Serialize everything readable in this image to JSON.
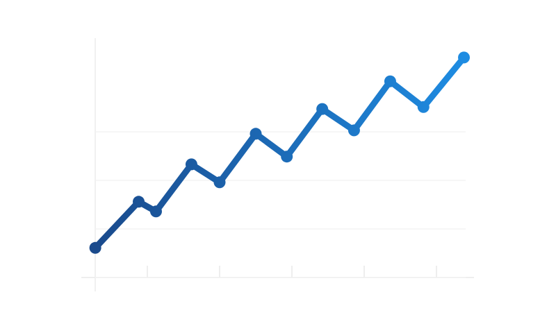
{
  "chart_data": {
    "type": "line",
    "x": [
      0.28,
      0.88,
      1.12,
      1.61,
      2.0,
      2.5,
      2.93,
      3.42,
      3.86,
      4.36,
      4.82,
      5.38
    ],
    "series": [
      {
        "values": [
          0.61,
          1.56,
          1.36,
          2.33,
          1.96,
          2.96,
          2.49,
          3.47,
          3.03,
          4.04,
          3.51,
          4.53
        ],
        "color": "#1e6fc4",
        "gradient": [
          "#1a4a8c",
          "#1e8ce2"
        ]
      }
    ],
    "xlim": [
      0,
      5.5
    ],
    "ylim": [
      0,
      5
    ],
    "xticks": [
      1,
      2,
      3,
      4,
      5
    ],
    "yticks": [
      0,
      1,
      2,
      3
    ],
    "grid": true
  }
}
